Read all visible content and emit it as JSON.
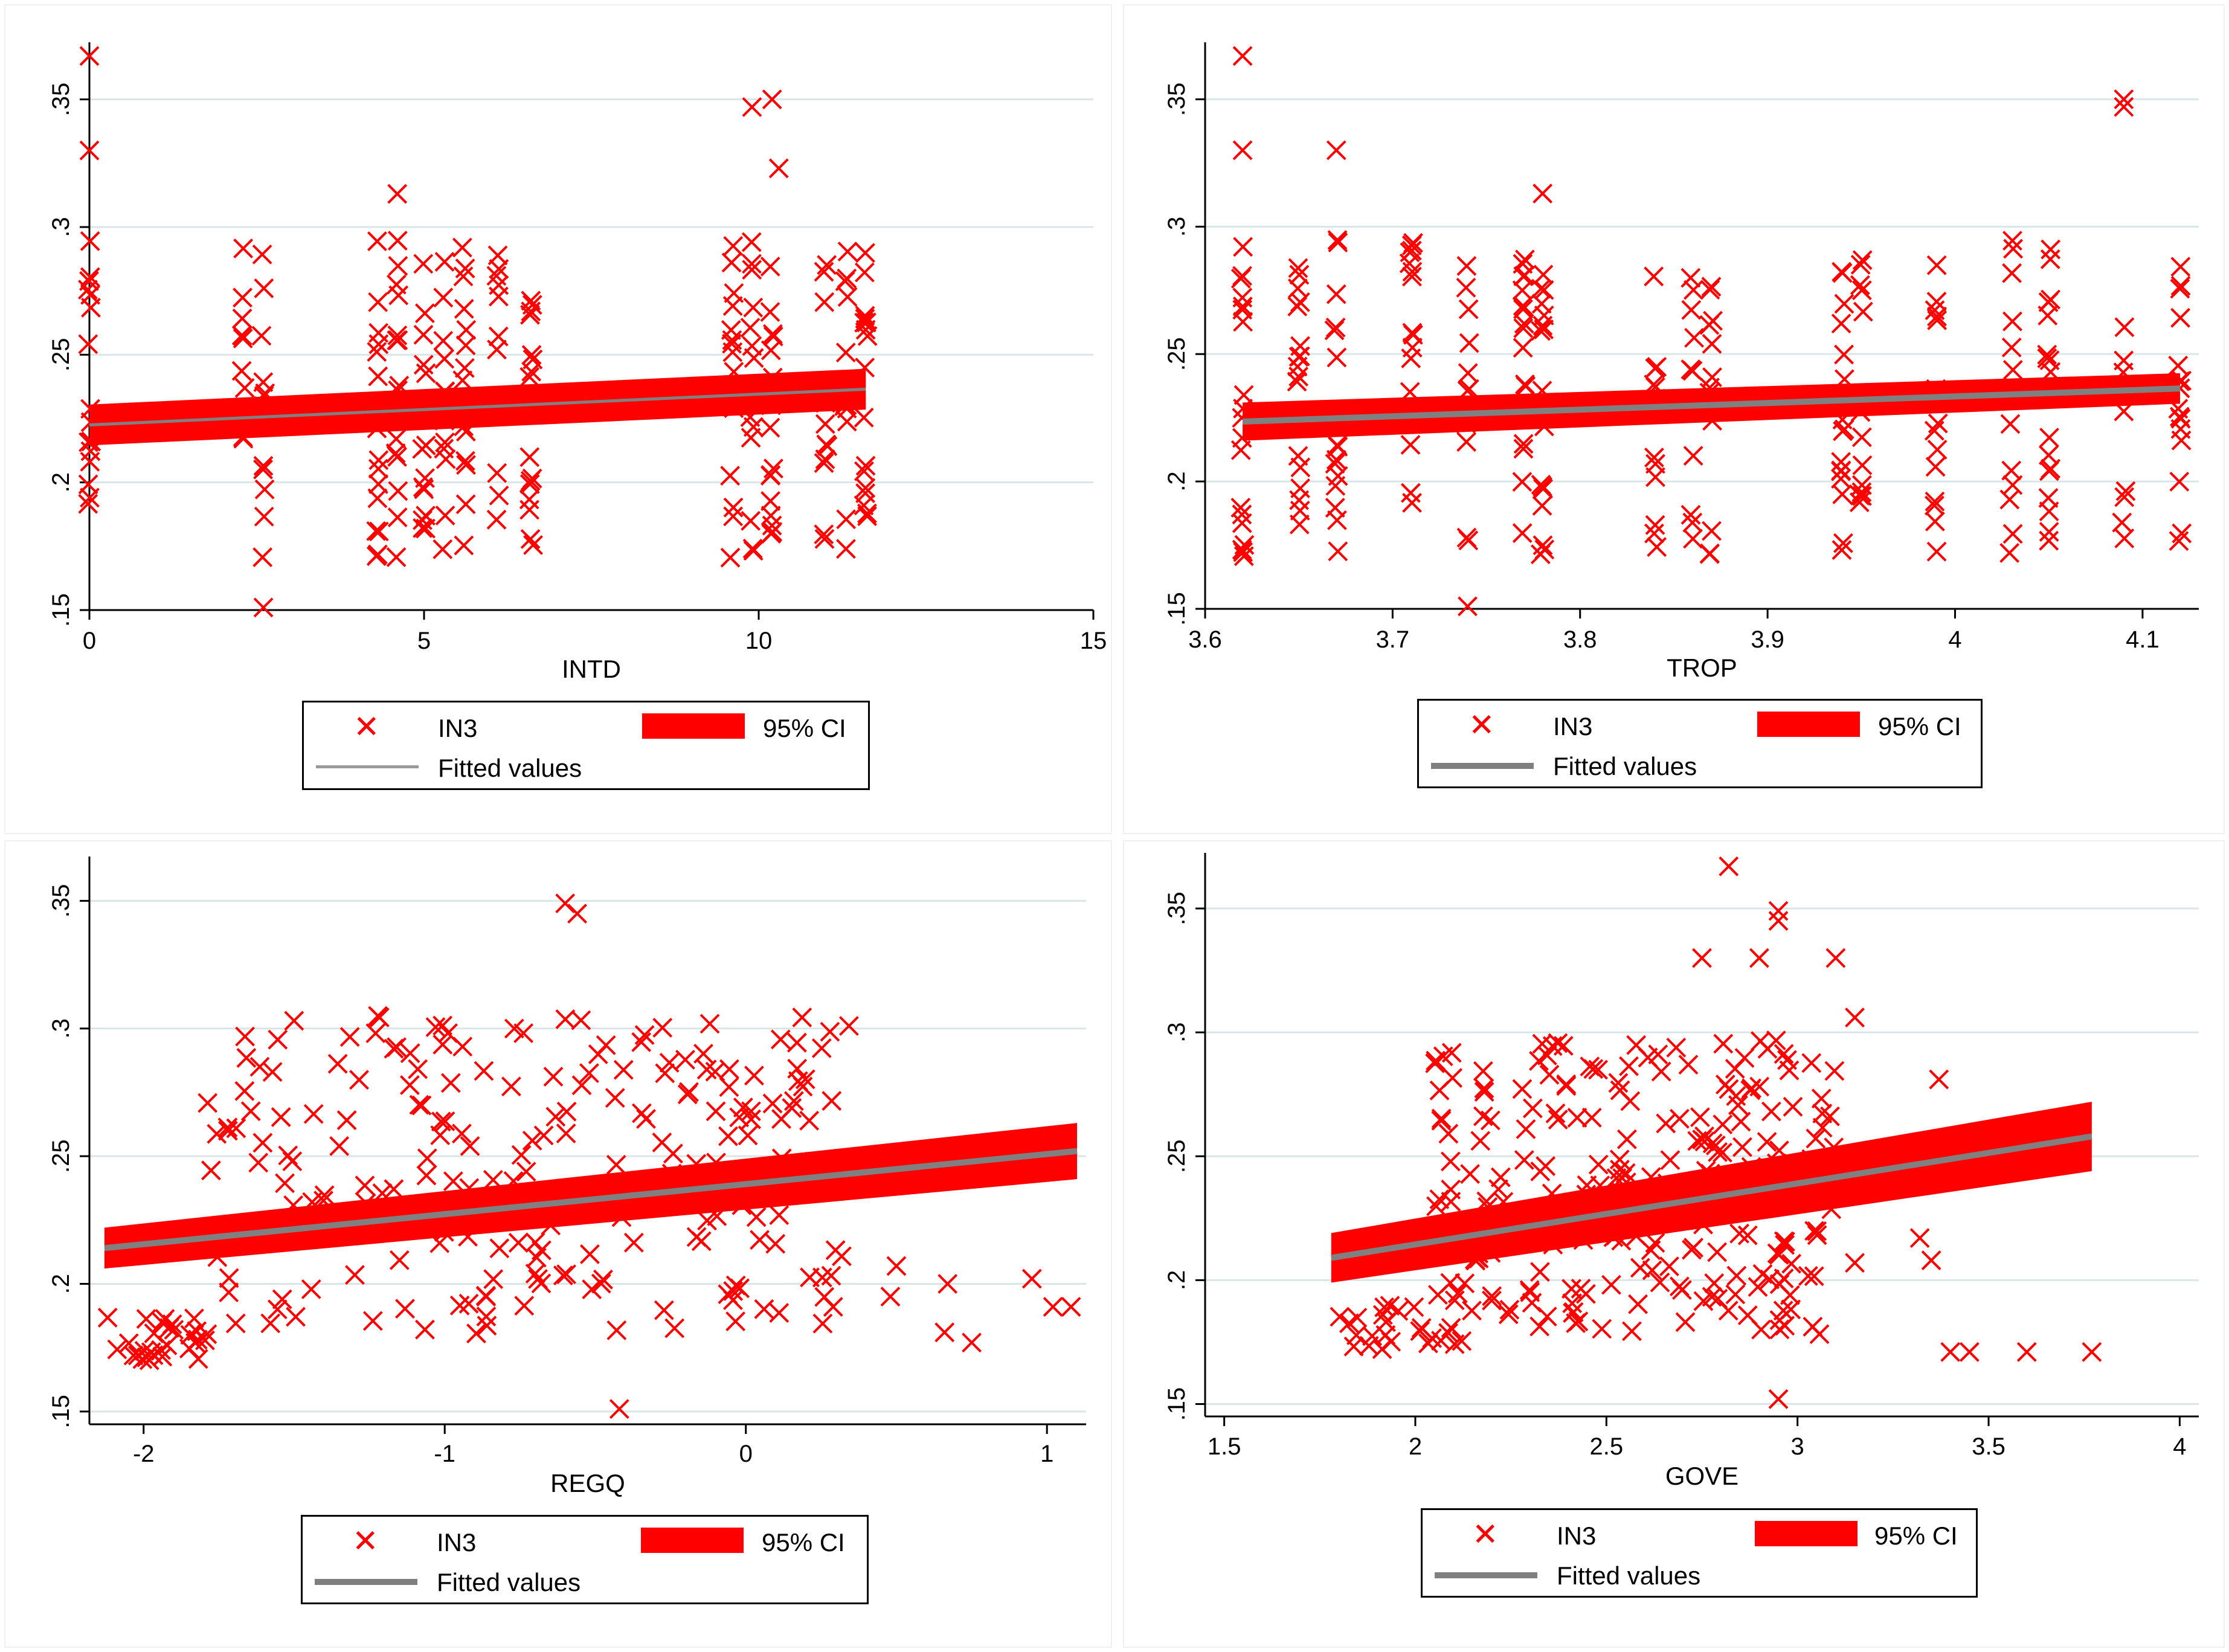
{
  "colors": {
    "marker": "#ff0000",
    "ci": "#ff0000",
    "fit": "#808080",
    "grid": "#d9e6e8",
    "axis": "#000000"
  },
  "chart_data": [
    {
      "type": "scatter",
      "xlabel": "INTD",
      "ylabel": "",
      "xlim": [
        0,
        15
      ],
      "ylim": [
        0.15,
        0.37
      ],
      "xticks": [
        0,
        5,
        10,
        15
      ],
      "xtick_labels": [
        "0",
        "5",
        "10",
        "15"
      ],
      "yticks": [
        0.15,
        0.2,
        0.25,
        0.3,
        0.35
      ],
      "ytick_labels": [
        ".15",
        ".2",
        ".25",
        ".3",
        ".35"
      ],
      "series_scatter": "IN3",
      "x_groups": [
        0,
        2.3,
        2.6,
        4.3,
        4.6,
        5.0,
        5.3,
        5.6,
        6.1,
        6.6,
        9.6,
        9.9,
        10.2,
        11.0,
        11.3,
        11.6
      ],
      "extra_points": [
        [
          0,
          0.367
        ],
        [
          0,
          0.33
        ],
        [
          2.6,
          0.151
        ],
        [
          10.2,
          0.35
        ],
        [
          9.9,
          0.347
        ],
        [
          4.6,
          0.313
        ],
        [
          10.3,
          0.323
        ]
      ],
      "fit": {
        "x0": 0,
        "x1": 11.6,
        "y0": 0.2225,
        "y1": 0.2365,
        "ci0": 0.008,
        "ci1": 0.008
      },
      "legend": {
        "scatter": "IN3",
        "ci": "95% CI",
        "fit": "Fitted values"
      }
    },
    {
      "type": "scatter",
      "xlabel": "TROP",
      "ylabel": "",
      "xlim": [
        3.6,
        4.13
      ],
      "ylim": [
        0.15,
        0.37
      ],
      "xticks": [
        3.6,
        3.7,
        3.8,
        3.9,
        4.0,
        4.1
      ],
      "xtick_labels": [
        "3.6",
        "3.7",
        "3.8",
        "3.9",
        "4",
        "4.1"
      ],
      "yticks": [
        0.15,
        0.2,
        0.25,
        0.3,
        0.35
      ],
      "ytick_labels": [
        ".15",
        ".2",
        ".25",
        ".3",
        ".35"
      ],
      "series_scatter": "IN3",
      "x_groups": [
        3.62,
        3.65,
        3.67,
        3.71,
        3.74,
        3.77,
        3.78,
        3.84,
        3.86,
        3.87,
        3.94,
        3.95,
        3.99,
        4.03,
        4.05,
        4.09,
        4.12
      ],
      "extra_points": [
        [
          3.62,
          0.367
        ],
        [
          3.62,
          0.33
        ],
        [
          3.67,
          0.33
        ],
        [
          3.74,
          0.151
        ],
        [
          4.09,
          0.35
        ],
        [
          4.09,
          0.347
        ],
        [
          3.78,
          0.313
        ]
      ],
      "fit": {
        "x0": 3.62,
        "x1": 4.12,
        "y0": 0.2235,
        "y1": 0.2365,
        "ci0": 0.0075,
        "ci1": 0.006
      },
      "legend": {
        "scatter": "IN3",
        "ci": "95% CI",
        "fit": "Fitted values"
      }
    },
    {
      "type": "scatter",
      "xlabel": "REGQ",
      "ylabel": "",
      "xlim": [
        -2.18,
        1.13
      ],
      "ylim": [
        0.145,
        0.365
      ],
      "xticks": [
        -2,
        -1,
        0,
        1
      ],
      "xtick_labels": [
        "-2",
        "-1",
        "0",
        "1"
      ],
      "yticks": [
        0.15,
        0.2,
        0.25,
        0.3,
        0.35
      ],
      "ytick_labels": [
        ".15",
        ".2",
        ".25",
        ".3",
        ".35"
      ],
      "series_scatter": "IN3",
      "fit": {
        "x0": -2.13,
        "x1": 1.1,
        "y0": 0.214,
        "y1": 0.252,
        "ci0": 0.008,
        "ci1": 0.011
      },
      "legend": {
        "scatter": "IN3",
        "ci": "95% CI",
        "fit": "Fitted values"
      }
    },
    {
      "type": "scatter",
      "xlabel": "GOVE",
      "ylabel": "",
      "xlim": [
        1.45,
        4.05
      ],
      "ylim": [
        0.145,
        0.37
      ],
      "xticks": [
        1.5,
        2,
        2.5,
        3,
        3.5,
        4
      ],
      "xtick_labels": [
        "1.5",
        "2",
        "2.5",
        "3",
        "3.5",
        "4"
      ],
      "yticks": [
        0.15,
        0.2,
        0.25,
        0.3,
        0.35
      ],
      "ytick_labels": [
        ".15",
        ".2",
        ".25",
        ".3",
        ".35"
      ],
      "series_scatter": "IN3",
      "fit": {
        "x0": 1.78,
        "x1": 3.77,
        "y0": 0.209,
        "y1": 0.258,
        "ci0": 0.01,
        "ci1": 0.014
      },
      "legend": {
        "scatter": "IN3",
        "ci": "95% CI",
        "fit": "Fitted values"
      }
    }
  ]
}
